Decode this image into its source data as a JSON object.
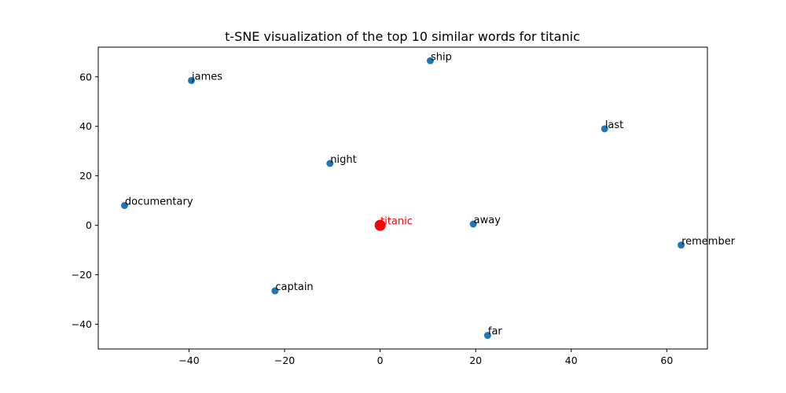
{
  "chart_data": {
    "type": "scatter",
    "title": "t-SNE visualization of the top 10 similar words for titanic",
    "xlabel": "",
    "ylabel": "",
    "xlim": [
      -59,
      68.5
    ],
    "ylim": [
      -50,
      72
    ],
    "xticks": [
      -40,
      -20,
      0,
      20,
      40,
      60
    ],
    "yticks": [
      -40,
      -20,
      0,
      20,
      40,
      60
    ],
    "xtick_labels": [
      "−40",
      "−20",
      "0",
      "20",
      "40",
      "60"
    ],
    "ytick_labels": [
      "−40",
      "−20",
      "0",
      "20",
      "40",
      "60"
    ],
    "grid": false,
    "points": [
      {
        "label": "ship",
        "x": 10.5,
        "y": 66.5,
        "highlight": false
      },
      {
        "label": "james",
        "x": -39.5,
        "y": 58.5,
        "highlight": false
      },
      {
        "label": "last",
        "x": 47.0,
        "y": 39.0,
        "highlight": false
      },
      {
        "label": "night",
        "x": -10.5,
        "y": 25.0,
        "highlight": false
      },
      {
        "label": "documentary",
        "x": -53.5,
        "y": 8.0,
        "highlight": false
      },
      {
        "label": "away",
        "x": 19.5,
        "y": 0.5,
        "highlight": false
      },
      {
        "label": "remember",
        "x": 63.0,
        "y": -8.0,
        "highlight": false
      },
      {
        "label": "captain",
        "x": -22.0,
        "y": -26.5,
        "highlight": false
      },
      {
        "label": "far",
        "x": 22.5,
        "y": -44.5,
        "highlight": false
      },
      {
        "label": "titanic",
        "x": 0.0,
        "y": 0.0,
        "highlight": true
      }
    ],
    "colors": {
      "point": "#1f77b4",
      "highlight": "#ff0000",
      "highlight_label": "#ff0000"
    }
  }
}
